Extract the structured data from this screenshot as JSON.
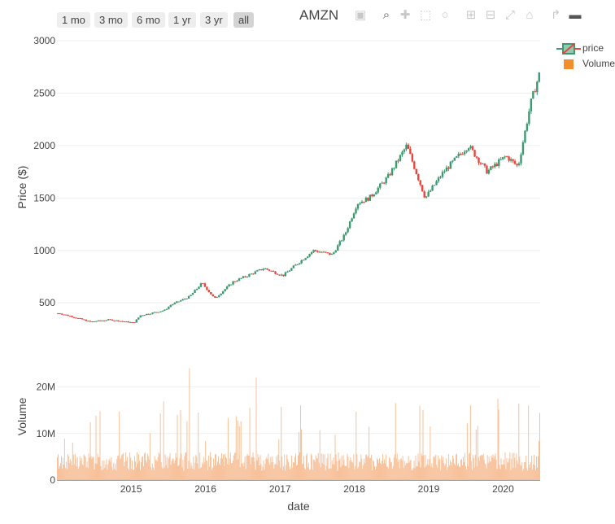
{
  "title": "AMZN",
  "range_selector": [
    "1 mo",
    "3 mo",
    "6 mo",
    "1 yr",
    "3 yr",
    "all"
  ],
  "range_selected": "all",
  "toolbar": [
    "camera-icon",
    "zoom-icon",
    "pan-icon",
    "box-select-icon",
    "lasso-select-icon",
    "zoom-in-icon",
    "zoom-out-icon",
    "autoscale-icon",
    "reset-axes-icon",
    "spike-lines-icon",
    "hover-closest-icon"
  ],
  "legend": [
    {
      "label": "price",
      "kind": "candlestick"
    },
    {
      "label": "Volume",
      "kind": "bar"
    }
  ],
  "colors": {
    "increasing": "#3d9970",
    "decreasing": "#e8453c",
    "volume": "#f28e2b",
    "volume_bar": "#f7c19a",
    "grid": "#eeeeee",
    "active_tool": "#555555",
    "inactive_tool": "#c8c8c8"
  },
  "chart_data": [
    {
      "type": "candlestick",
      "title": "AMZN",
      "ylabel": "Price ($)",
      "ylim": [
        300,
        3000
      ],
      "yticks": [
        500,
        1000,
        1500,
        2000,
        2500,
        3000
      ],
      "grid": true,
      "legend_position": "top-right",
      "series": [
        {
          "name": "price",
          "x_approx_close": [
            "2014-01",
            "2014-03",
            "2014-06",
            "2014-09",
            "2015-01",
            "2015-02",
            "2015-06",
            "2015-07",
            "2015-10",
            "2015-12",
            "2016-02",
            "2016-05",
            "2016-10",
            "2017-01",
            "2017-06",
            "2017-09",
            "2017-11",
            "2018-01",
            "2018-03",
            "2018-06",
            "2018-09",
            "2018-12",
            "2019-03",
            "2019-07",
            "2019-10",
            "2020-01",
            "2020-03",
            "2020-05",
            "2020-07"
          ],
          "y_approx_close": [
            400,
            370,
            320,
            340,
            310,
            380,
            430,
            480,
            560,
            690,
            540,
            700,
            830,
            760,
            1000,
            960,
            1150,
            1450,
            1500,
            1700,
            2000,
            1500,
            1750,
            2000,
            1750,
            1900,
            1800,
            2400,
            2800
          ]
        }
      ]
    },
    {
      "type": "bar",
      "xlabel": "date",
      "ylabel": "Volume",
      "ylim": [
        0,
        25000000
      ],
      "yticks": [
        "0",
        "10M",
        "20M"
      ],
      "xticks": [
        "2015",
        "2016",
        "2017",
        "2018",
        "2019",
        "2020"
      ],
      "grid": true,
      "series": [
        {
          "name": "Volume",
          "typical_daily_volume": 4000000,
          "peak_volume": 24000000
        }
      ]
    }
  ]
}
